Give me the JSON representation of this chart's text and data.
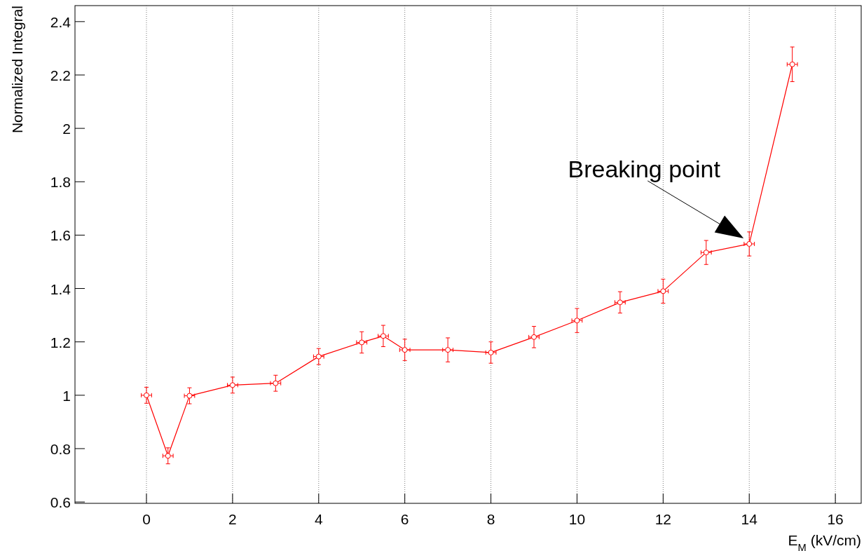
{
  "chart_data": {
    "type": "line",
    "xlabel": "E$_{M}$ (kV/cm)",
    "ylabel": "Normalized Integral",
    "x": [
      0,
      0.5,
      1,
      2,
      3,
      4,
      5,
      5.5,
      6,
      7,
      8,
      9,
      10,
      11,
      12,
      13,
      14,
      15
    ],
    "series": [
      {
        "color": "#ff0000",
        "values": [
          1.0,
          0.773,
          0.998,
          1.038,
          1.045,
          1.145,
          1.198,
          1.222,
          1.17,
          1.17,
          1.16,
          1.218,
          1.28,
          1.348,
          1.39,
          1.535,
          1.567,
          2.24
        ],
        "errors": [
          0.03,
          0.03,
          0.03,
          0.03,
          0.03,
          0.03,
          0.04,
          0.04,
          0.04,
          0.045,
          0.04,
          0.04,
          0.045,
          0.04,
          0.045,
          0.045,
          0.045,
          0.065
        ],
        "xerrors": [
          0.12,
          0.12,
          0.12,
          0.12,
          0.12,
          0.12,
          0.12,
          0.12,
          0.12,
          0.12,
          0.12,
          0.12,
          0.12,
          0.12,
          0.12,
          0.12,
          0.12,
          0.12
        ]
      }
    ],
    "xlim": [
      -1.66,
      16.6
    ],
    "ylim": [
      0.595,
      2.46
    ],
    "xticks": [
      0,
      2,
      4,
      6,
      8,
      10,
      12,
      14,
      16
    ],
    "yticks": [
      0.6,
      0.8,
      1,
      1.2,
      1.4,
      1.6,
      1.8,
      2,
      2.2,
      2.4
    ],
    "grid": "x",
    "marker": "circle",
    "line_style": "solid",
    "annotations": [
      {
        "text": "Breaking point",
        "x": 14,
        "y": 1.567
      }
    ]
  }
}
